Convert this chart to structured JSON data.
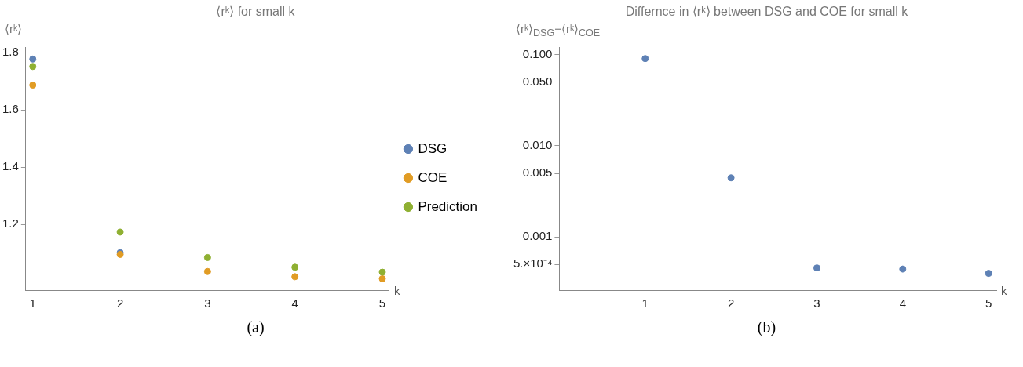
{
  "chart_data": [
    {
      "type": "scatter",
      "title": "⟨rᵏ⟩ for small k",
      "xlabel": "k",
      "ylabel": "⟨rᵏ⟩",
      "x": [
        1,
        2,
        3,
        4,
        5
      ],
      "series": [
        {
          "name": "DSG",
          "color": "#5e81b5",
          "values": [
            1.778,
            1.101,
            null,
            null,
            null
          ]
        },
        {
          "name": "COE",
          "color": "#e19c24",
          "values": [
            1.687,
            1.095,
            1.035,
            1.017,
            1.01
          ]
        },
        {
          "name": "Prediction",
          "color": "#8fb032",
          "values": [
            1.752,
            1.173,
            1.084,
            1.05,
            1.033
          ]
        }
      ],
      "xlim": [
        0.92,
        5.08
      ],
      "ylim": [
        0.97,
        1.82
      ],
      "xticks": [
        1,
        2,
        3,
        4,
        5
      ],
      "yticks": [
        1.2,
        1.4,
        1.6,
        1.8
      ],
      "grid": false,
      "legend": "right",
      "marker": "circle",
      "annotations": [
        "(a)"
      ]
    },
    {
      "type": "scatter",
      "title": "Differnce in ⟨rᵏ⟩ between DSG and COE for small k",
      "xlabel": "k",
      "ylabel": "⟨rᵏ⟩$_{DSG}$−⟨rᵏ⟩$_{COE}$",
      "x": [
        1,
        2,
        3,
        4,
        5
      ],
      "series": [
        {
          "color": "#5e81b5",
          "values": [
            0.0905,
            0.00446,
            0.000459,
            0.000446,
            0.0004
          ]
        }
      ],
      "xlim": [
        0,
        5.09
      ],
      "ylim": [
        0.000262,
        0.121
      ],
      "xticks": [
        1,
        2,
        3,
        4,
        5
      ],
      "yticks": [
        {
          "value": 0.1,
          "label": "0.100"
        },
        {
          "value": 0.05,
          "label": "0.050"
        },
        {
          "value": 0.01,
          "label": "0.010"
        },
        {
          "value": 0.005,
          "label": "0.005"
        },
        {
          "value": 0.001,
          "label": "0.001"
        },
        {
          "value": 0.0005,
          "label": "5.×10⁻⁴"
        }
      ],
      "log": true,
      "grid": false,
      "marker": "circle",
      "annotations": [
        "(b)"
      ]
    }
  ]
}
